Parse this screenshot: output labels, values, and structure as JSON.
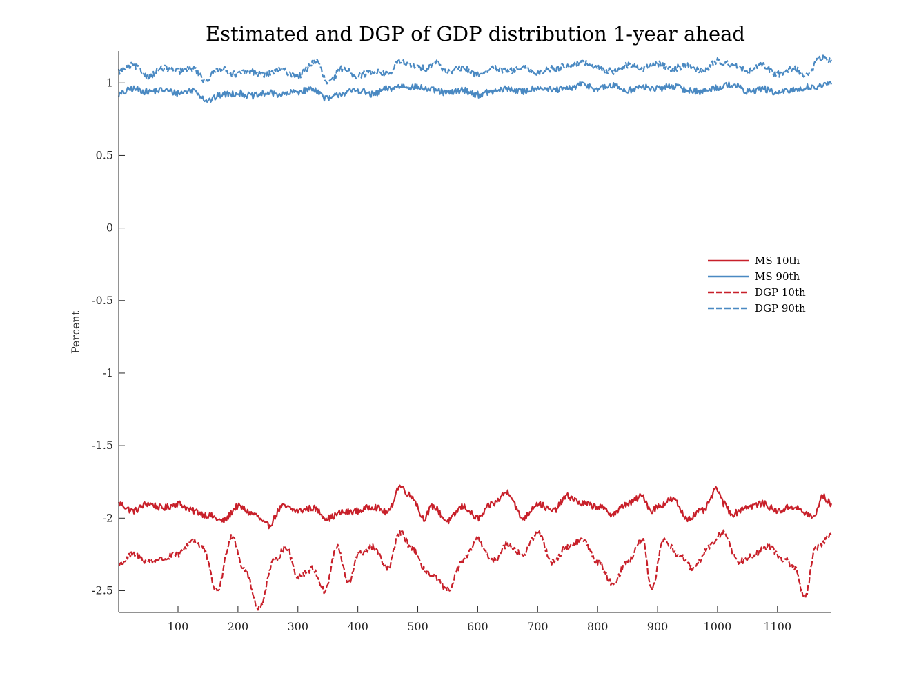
{
  "chart_data": {
    "type": "line",
    "title": "Estimated and DGP of GDP distribution 1-year ahead",
    "xlabel": "",
    "ylabel": "Percent",
    "xlim": [
      1,
      1190
    ],
    "ylim": [
      -2.65,
      1.22
    ],
    "xticks": [
      100,
      200,
      300,
      400,
      500,
      600,
      700,
      800,
      900,
      1000,
      1100
    ],
    "xtick_labels": [
      "100",
      "200",
      "300",
      "400",
      "500",
      "600",
      "700",
      "800",
      "900",
      "1000",
      "1100"
    ],
    "yticks": [
      1,
      0.5,
      0,
      -0.5,
      -1,
      -1.5,
      -2,
      -2.5
    ],
    "ytick_labels": [
      "1",
      "0.5",
      "0",
      "-0.5",
      "-1",
      "-1.5",
      "-2",
      "-2.5"
    ],
    "grid": false,
    "legend_position": "right",
    "series": [
      {
        "name": "MS 10th",
        "color": "#c8202a",
        "style": "solid",
        "x": [
          1,
          25,
          50,
          75,
          100,
          125,
          150,
          175,
          200,
          225,
          250,
          275,
          300,
          325,
          350,
          375,
          400,
          425,
          450,
          470,
          490,
          510,
          525,
          550,
          575,
          600,
          625,
          650,
          675,
          700,
          725,
          750,
          775,
          800,
          825,
          850,
          875,
          890,
          900,
          925,
          950,
          975,
          1000,
          1010,
          1025,
          1050,
          1075,
          1100,
          1125,
          1150,
          1160,
          1175,
          1190
        ],
        "values": [
          -1.9,
          -1.95,
          -1.9,
          -1.93,
          -1.9,
          -1.95,
          -1.98,
          -2.02,
          -1.92,
          -1.97,
          -2.05,
          -1.92,
          -1.95,
          -1.93,
          -2.0,
          -1.96,
          -1.95,
          -1.92,
          -1.96,
          -1.78,
          -1.85,
          -2.0,
          -1.92,
          -2.02,
          -1.92,
          -2.0,
          -1.9,
          -1.82,
          -2.0,
          -1.9,
          -1.95,
          -1.85,
          -1.9,
          -1.92,
          -1.97,
          -1.9,
          -1.85,
          -1.95,
          -1.92,
          -1.87,
          -2.0,
          -1.95,
          -1.8,
          -1.9,
          -1.97,
          -1.92,
          -1.9,
          -1.95,
          -1.92,
          -1.97,
          -2.0,
          -1.85,
          -1.9
        ]
      },
      {
        "name": "MS 90th",
        "color": "#4a89c2",
        "style": "solid",
        "x": [
          1,
          25,
          50,
          75,
          100,
          125,
          150,
          175,
          200,
          225,
          250,
          275,
          300,
          325,
          350,
          375,
          400,
          425,
          450,
          475,
          500,
          525,
          550,
          575,
          600,
          625,
          650,
          675,
          700,
          725,
          750,
          775,
          800,
          825,
          850,
          875,
          900,
          925,
          950,
          975,
          1000,
          1025,
          1050,
          1075,
          1100,
          1125,
          1150,
          1175,
          1190
        ],
        "values": [
          0.92,
          0.96,
          0.94,
          0.95,
          0.93,
          0.95,
          0.88,
          0.92,
          0.93,
          0.91,
          0.93,
          0.92,
          0.94,
          0.96,
          0.89,
          0.93,
          0.95,
          0.92,
          0.96,
          0.98,
          0.97,
          0.95,
          0.93,
          0.95,
          0.92,
          0.94,
          0.96,
          0.94,
          0.97,
          0.95,
          0.96,
          0.99,
          0.96,
          0.98,
          0.95,
          0.97,
          0.96,
          0.98,
          0.95,
          0.94,
          0.97,
          0.99,
          0.94,
          0.96,
          0.93,
          0.95,
          0.97,
          0.98,
          0.99
        ]
      },
      {
        "name": "DGP 10th",
        "color": "#c8202a",
        "style": "dashed",
        "x": [
          1,
          25,
          50,
          75,
          100,
          125,
          140,
          165,
          190,
          210,
          235,
          260,
          280,
          300,
          325,
          345,
          365,
          385,
          400,
          425,
          450,
          470,
          490,
          510,
          525,
          550,
          575,
          600,
          625,
          650,
          675,
          700,
          725,
          750,
          775,
          800,
          825,
          850,
          875,
          890,
          910,
          935,
          960,
          985,
          1010,
          1035,
          1060,
          1085,
          1110,
          1130,
          1145,
          1165,
          1190
        ],
        "values": [
          -2.32,
          -2.25,
          -2.3,
          -2.28,
          -2.25,
          -2.15,
          -2.2,
          -2.5,
          -2.12,
          -2.35,
          -2.62,
          -2.3,
          -2.2,
          -2.4,
          -2.35,
          -2.5,
          -2.2,
          -2.45,
          -2.25,
          -2.2,
          -2.35,
          -2.1,
          -2.2,
          -2.35,
          -2.4,
          -2.5,
          -2.3,
          -2.15,
          -2.3,
          -2.18,
          -2.25,
          -2.1,
          -2.3,
          -2.2,
          -2.15,
          -2.3,
          -2.45,
          -2.3,
          -2.15,
          -2.5,
          -2.15,
          -2.25,
          -2.35,
          -2.2,
          -2.1,
          -2.3,
          -2.25,
          -2.2,
          -2.28,
          -2.35,
          -2.55,
          -2.2,
          -2.12
        ]
      },
      {
        "name": "DGP 90th",
        "color": "#4a89c2",
        "style": "dashed",
        "x": [
          1,
          25,
          50,
          75,
          100,
          125,
          145,
          170,
          195,
          220,
          245,
          270,
          300,
          330,
          350,
          375,
          400,
          425,
          450,
          470,
          490,
          510,
          530,
          550,
          575,
          600,
          625,
          650,
          675,
          700,
          725,
          750,
          775,
          800,
          825,
          850,
          875,
          900,
          925,
          950,
          975,
          1000,
          1025,
          1050,
          1075,
          1100,
          1125,
          1150,
          1170,
          1190
        ],
        "values": [
          1.08,
          1.12,
          1.05,
          1.1,
          1.08,
          1.1,
          1.02,
          1.1,
          1.06,
          1.08,
          1.06,
          1.09,
          1.05,
          1.15,
          1.0,
          1.1,
          1.05,
          1.08,
          1.06,
          1.15,
          1.12,
          1.1,
          1.14,
          1.08,
          1.1,
          1.06,
          1.1,
          1.08,
          1.1,
          1.07,
          1.1,
          1.12,
          1.14,
          1.1,
          1.08,
          1.12,
          1.1,
          1.13,
          1.1,
          1.12,
          1.08,
          1.15,
          1.13,
          1.08,
          1.12,
          1.06,
          1.1,
          1.05,
          1.17,
          1.16
        ]
      }
    ]
  }
}
